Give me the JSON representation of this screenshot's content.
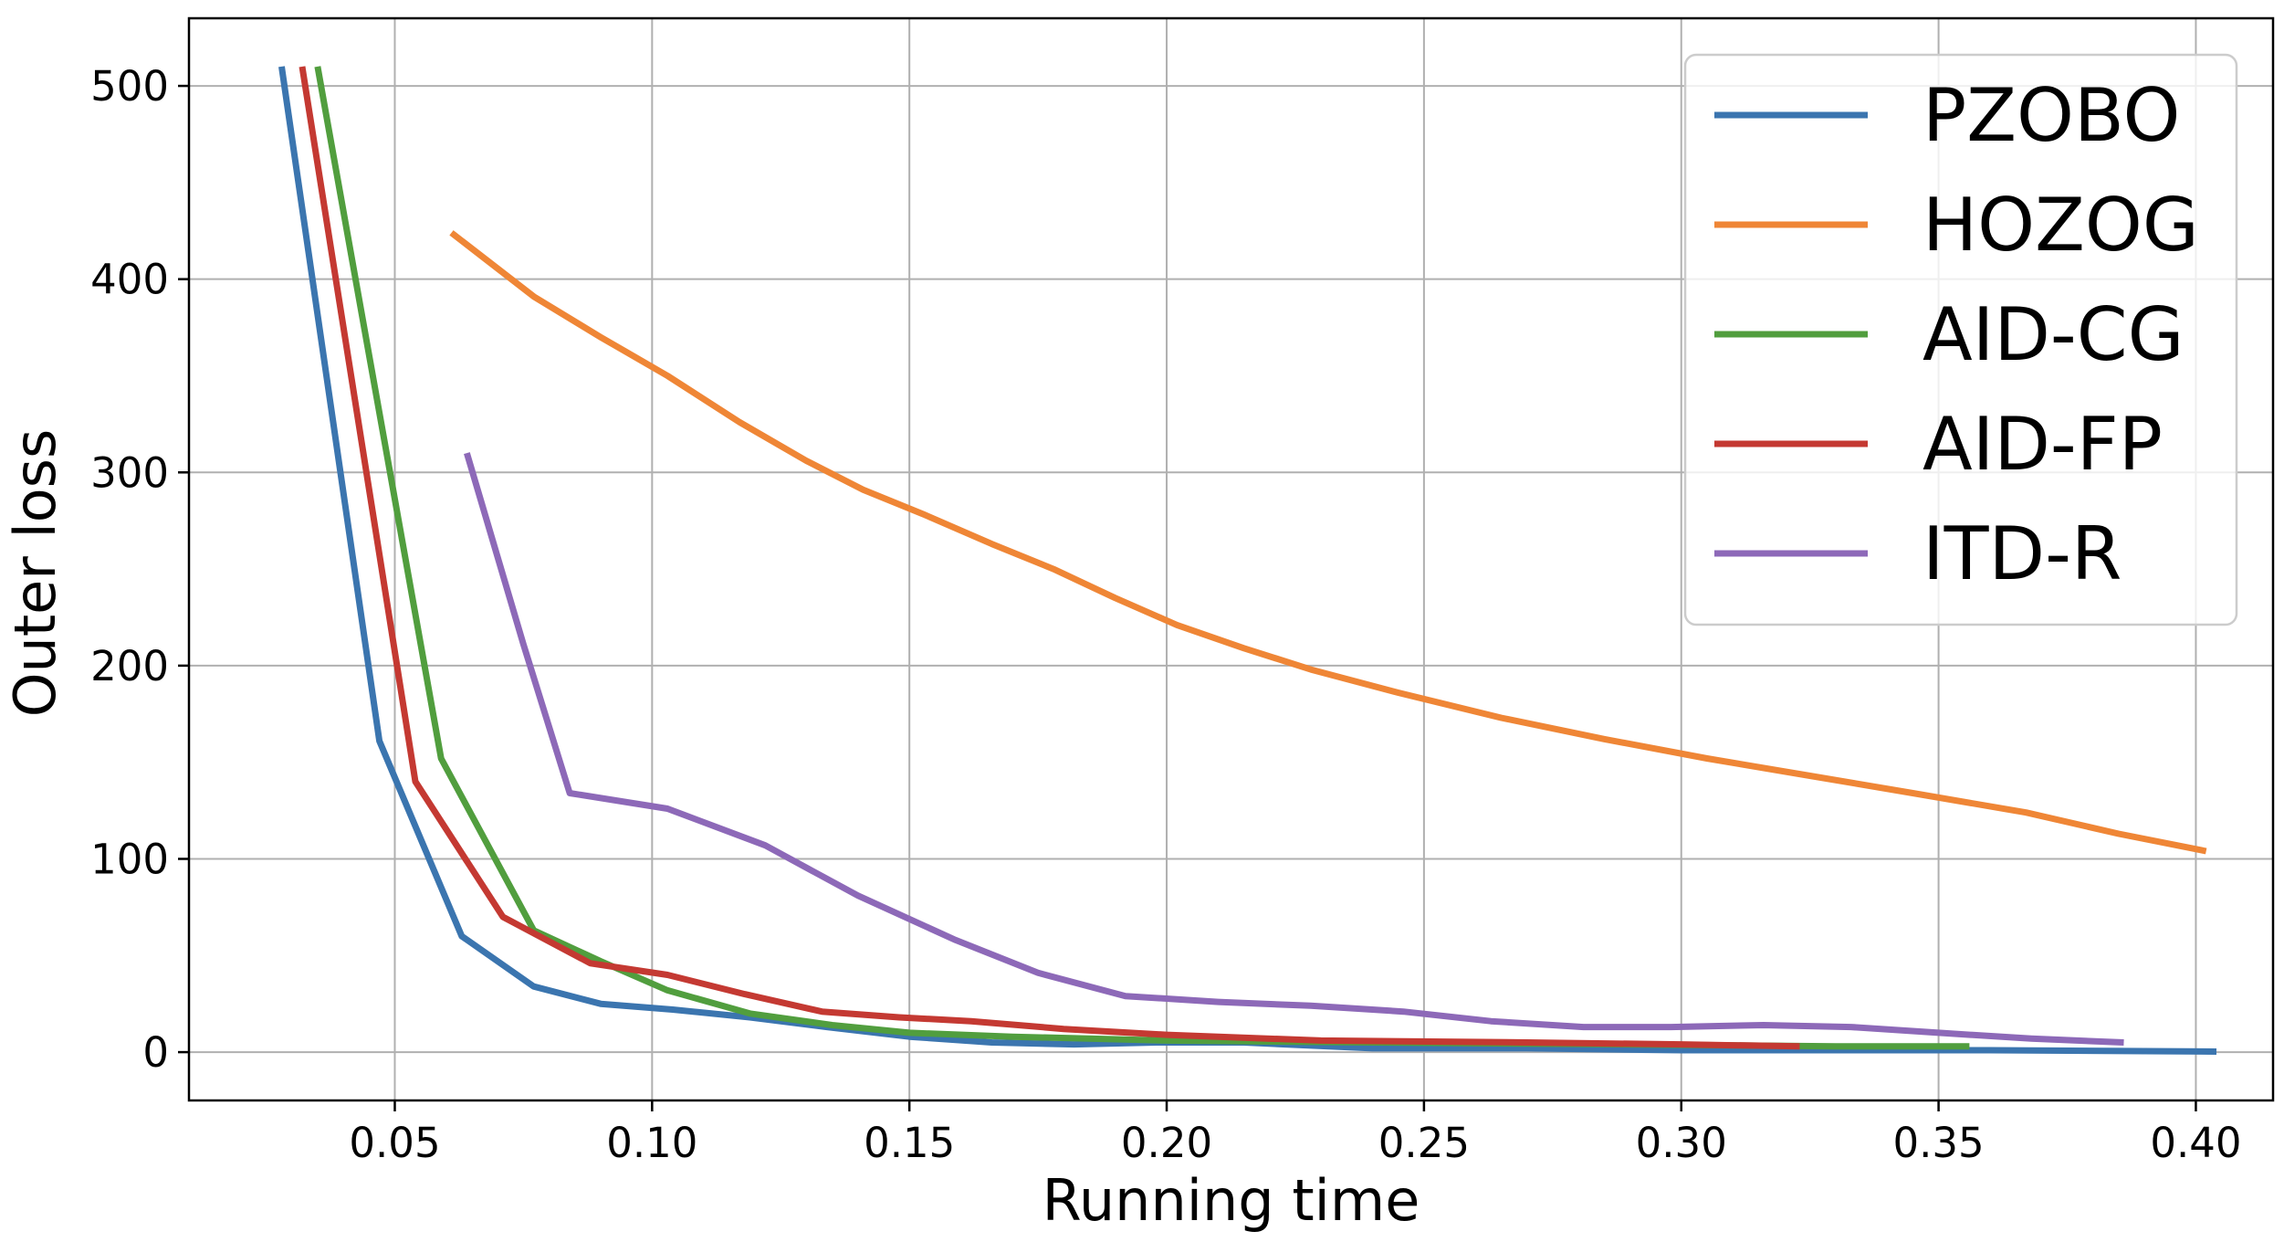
{
  "chart_data": {
    "type": "line",
    "title": "",
    "xlabel": "Running time",
    "ylabel": "Outer loss",
    "xlim": [
      0.01,
      0.415
    ],
    "ylim": [
      -25,
      535
    ],
    "xticks": [
      0.05,
      0.1,
      0.15,
      0.2,
      0.25,
      0.3,
      0.35,
      0.4
    ],
    "xtick_labels": [
      "0.05",
      "0.10",
      "0.15",
      "0.20",
      "0.25",
      "0.30",
      "0.35",
      "0.40"
    ],
    "yticks": [
      0,
      100,
      200,
      300,
      400,
      500
    ],
    "ytick_labels": [
      "0",
      "100",
      "200",
      "300",
      "400",
      "500"
    ],
    "grid": true,
    "legend_position": "top-right",
    "series": [
      {
        "name": "PZOBO",
        "color": "#3b75af",
        "legend_text_color": "#0d1b4f",
        "x": [
          0.028,
          0.047,
          0.063,
          0.077,
          0.09,
          0.104,
          0.119,
          0.134,
          0.15,
          0.166,
          0.182,
          0.198,
          0.215,
          0.24,
          0.27,
          0.3,
          0.33,
          0.36,
          0.39,
          0.404
        ],
        "y": [
          510,
          161,
          60,
          34,
          25,
          22,
          18,
          13,
          8,
          5,
          4,
          5,
          5,
          2,
          2,
          1,
          1,
          1,
          0.5,
          0.3
        ]
      },
      {
        "name": "HOZOG",
        "color": "#ef8636",
        "legend_text_color": "#000000",
        "x": [
          0.061,
          0.077,
          0.09,
          0.103,
          0.117,
          0.13,
          0.141,
          0.153,
          0.166,
          0.178,
          0.19,
          0.202,
          0.215,
          0.228,
          0.245,
          0.265,
          0.285,
          0.305,
          0.325,
          0.345,
          0.367,
          0.385,
          0.402
        ],
        "y": [
          424,
          391,
          370,
          350,
          326,
          306,
          291,
          278,
          263,
          250,
          235,
          221,
          209,
          198,
          186,
          173,
          162,
          152,
          143,
          134,
          124,
          113,
          104
        ]
      },
      {
        "name": "AID-CG",
        "color": "#519e3e",
        "legend_text_color": "#000000",
        "x": [
          0.035,
          0.059,
          0.077,
          0.09,
          0.103,
          0.119,
          0.135,
          0.15,
          0.17,
          0.2,
          0.24,
          0.29,
          0.33,
          0.356
        ],
        "y": [
          510,
          152,
          63,
          47,
          32,
          20,
          14,
          10,
          8,
          6,
          5,
          4,
          3,
          3
        ]
      },
      {
        "name": "AID-FP",
        "color": "#c43932",
        "legend_text_color": "#000000",
        "x": [
          0.032,
          0.054,
          0.071,
          0.088,
          0.103,
          0.118,
          0.133,
          0.148,
          0.162,
          0.18,
          0.2,
          0.23,
          0.27,
          0.3,
          0.323
        ],
        "y": [
          510,
          140,
          70,
          46,
          40,
          30,
          21,
          18,
          16,
          12,
          9,
          6,
          5,
          4,
          3
        ]
      },
      {
        "name": "ITD-R",
        "color": "#8d69b8",
        "legend_text_color": "#000000",
        "x": [
          0.064,
          0.075,
          0.084,
          0.103,
          0.122,
          0.14,
          0.159,
          0.175,
          0.192,
          0.21,
          0.228,
          0.246,
          0.263,
          0.281,
          0.298,
          0.316,
          0.333,
          0.35,
          0.368,
          0.386
        ],
        "y": [
          310,
          211,
          134,
          126,
          107,
          81,
          58,
          41,
          29,
          26,
          24,
          21,
          16,
          13,
          13,
          14,
          13,
          10,
          7,
          5
        ]
      }
    ]
  }
}
